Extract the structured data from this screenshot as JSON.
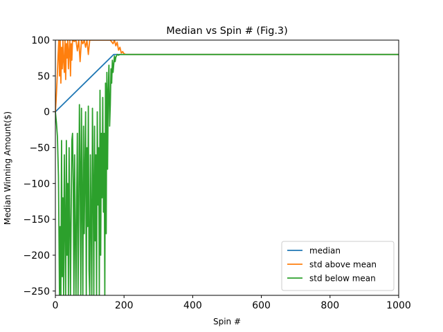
{
  "chart_data": {
    "type": "line",
    "title": "Median vs Spin # (Fig.3)",
    "xlabel": "Spin #",
    "ylabel": "Median Winning Amount($)",
    "xlim": [
      0,
      1000
    ],
    "ylim": [
      -256,
      100
    ],
    "xticks": [
      0,
      200,
      400,
      600,
      800,
      1000
    ],
    "yticks": [
      100,
      50,
      0,
      -50,
      -100,
      -150,
      -200,
      -250
    ],
    "grid": false,
    "legend_position": "lower-right",
    "series": [
      {
        "name": "median",
        "color": "#1f77b4",
        "x": [
          0,
          170,
          1000
        ],
        "y": [
          0,
          80,
          80
        ]
      },
      {
        "name": "std above mean",
        "color": "#ff7f0e",
        "x": [
          0,
          2,
          4,
          6,
          8,
          10,
          12,
          14,
          16,
          18,
          20,
          22,
          24,
          26,
          28,
          30,
          32,
          34,
          36,
          38,
          40,
          42,
          44,
          46,
          48,
          50,
          55,
          60,
          64,
          68,
          72,
          76,
          80,
          84,
          88,
          92,
          96,
          100,
          110,
          120,
          130,
          140,
          150,
          160,
          168,
          172,
          176,
          180,
          184,
          188,
          192,
          196,
          200,
          205,
          210,
          220,
          1000
        ],
        "y": [
          0,
          15,
          35,
          55,
          80,
          100,
          50,
          100,
          40,
          90,
          60,
          100,
          70,
          55,
          100,
          45,
          95,
          75,
          100,
          60,
          85,
          100,
          50,
          95,
          72,
          100,
          98,
          100,
          85,
          100,
          70,
          100,
          95,
          100,
          90,
          100,
          80,
          100,
          100,
          100,
          100,
          100,
          100,
          100,
          95,
          100,
          92,
          97,
          86,
          90,
          82,
          84,
          81,
          80,
          80,
          80,
          80
        ]
      },
      {
        "name": "std below mean",
        "color": "#2ca02c",
        "x": [
          0,
          3,
          6,
          9,
          12,
          14,
          16,
          18,
          20,
          22,
          24,
          26,
          28,
          30,
          32,
          34,
          36,
          38,
          40,
          42,
          44,
          46,
          48,
          50,
          52,
          54,
          56,
          58,
          60,
          62,
          64,
          66,
          68,
          70,
          72,
          74,
          76,
          78,
          80,
          82,
          84,
          86,
          88,
          90,
          92,
          94,
          96,
          98,
          100,
          102,
          104,
          106,
          108,
          110,
          112,
          114,
          116,
          118,
          120,
          122,
          124,
          126,
          128,
          130,
          132,
          134,
          136,
          138,
          140,
          142,
          144,
          146,
          148,
          150,
          152,
          154,
          156,
          158,
          160,
          162,
          164,
          166,
          168,
          170,
          172,
          174,
          176,
          178,
          180,
          184,
          188,
          192,
          196,
          200,
          205,
          210,
          1000
        ],
        "y": [
          0,
          -15,
          -35,
          -90,
          -256,
          -160,
          -256,
          -40,
          -230,
          -120,
          -256,
          -60,
          -160,
          -256,
          -40,
          -200,
          -100,
          -256,
          -50,
          -150,
          -256,
          -140,
          -40,
          -30,
          -100,
          -256,
          -60,
          -170,
          -256,
          -120,
          -30,
          -256,
          -150,
          10,
          -80,
          -256,
          5,
          -120,
          -256,
          -20,
          -170,
          -80,
          0,
          -256,
          -50,
          -160,
          8,
          -220,
          -256,
          -60,
          -150,
          -256,
          5,
          -100,
          -256,
          -20,
          -180,
          -60,
          -256,
          0,
          -130,
          -50,
          -256,
          30,
          -200,
          -30,
          -120,
          20,
          -140,
          -30,
          -256,
          40,
          -170,
          55,
          -80,
          30,
          65,
          -20,
          10,
          60,
          40,
          72,
          55,
          66,
          78,
          70,
          76,
          78,
          80,
          79,
          80,
          80,
          80,
          80,
          80,
          80,
          80
        ]
      }
    ]
  }
}
